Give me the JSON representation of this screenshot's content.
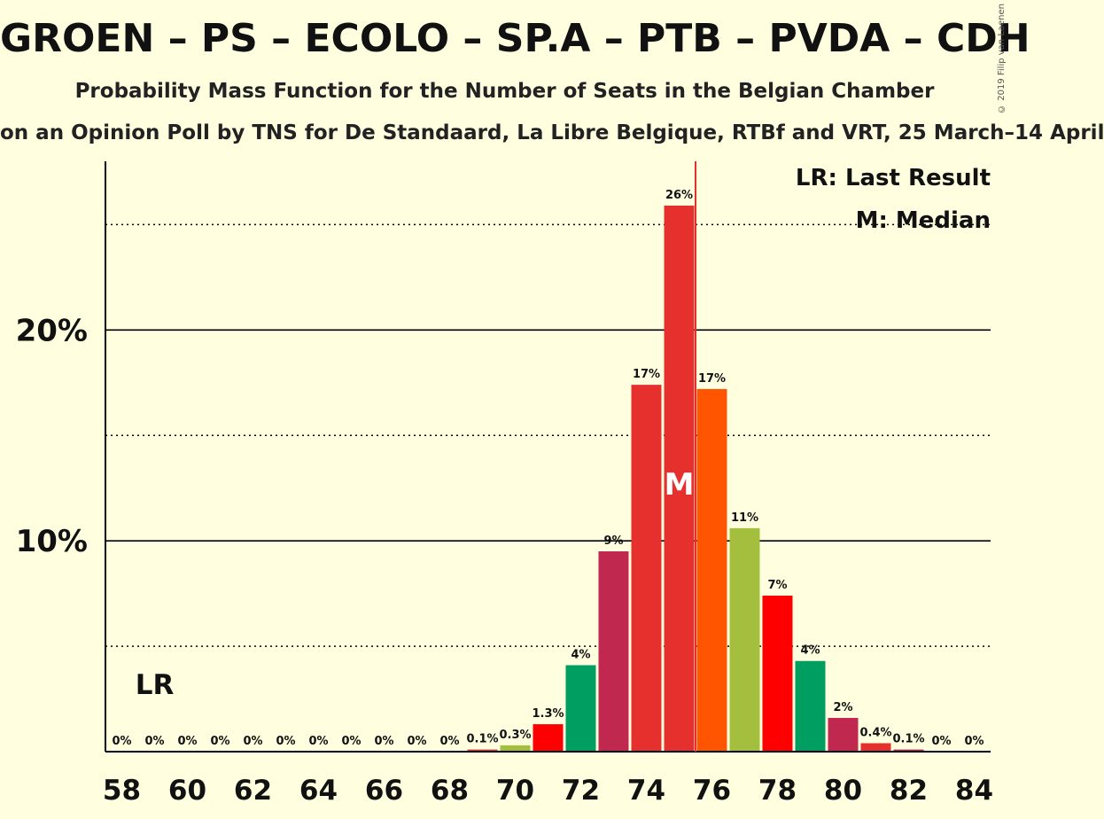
{
  "title": "GROEN – PS – ECOLO – SP.A – PTB – PVDA – CDH",
  "subtitle": "Probability Mass Function for the Number of Seats in the Belgian Chamber",
  "source": "on an Opinion Poll by TNS for De Standaard, La Libre Belgique, RTBf and VRT, 25 March–14 April",
  "copyright": "© 2019 Filip van Laenen",
  "chart_data": {
    "type": "bar",
    "x": [
      58,
      59,
      60,
      61,
      62,
      63,
      64,
      65,
      66,
      67,
      68,
      69,
      70,
      71,
      72,
      73,
      74,
      75,
      76,
      77,
      78,
      79,
      80,
      81,
      82,
      83,
      84
    ],
    "values": [
      0,
      0,
      0,
      0,
      0,
      0,
      0,
      0,
      0,
      0,
      0,
      0.1,
      0.3,
      1.3,
      4.1,
      9.5,
      17.4,
      25.9,
      17.2,
      10.6,
      7.4,
      4.3,
      1.6,
      0.4,
      0.1,
      0,
      0
    ],
    "labels": [
      "0%",
      "0%",
      "0%",
      "0%",
      "0%",
      "0%",
      "0%",
      "0%",
      "0%",
      "0%",
      "0%",
      "0.1%",
      "0.3%",
      "1.3%",
      "4%",
      "9%",
      "17%",
      "26%",
      "17%",
      "11%",
      "7%",
      "4%",
      "2%",
      "0.4%",
      "0.1%",
      "0%",
      "0%"
    ],
    "colors": [
      "#a4bf3e",
      "#ff0000",
      "#009e60",
      "#c0284f",
      "#e5302e",
      "#e5302e",
      "#ff5500",
      "#a4bf3e",
      "#ff0000",
      "#009e60",
      "#c0284f",
      "#e5302e",
      "#a4bf3e",
      "#ff0000",
      "#009e60",
      "#c0284f",
      "#e5302e",
      "#e5302e",
      "#ff5500",
      "#a4bf3e",
      "#ff0000",
      "#009e60",
      "#c0284f",
      "#e5302e",
      "#c0284f",
      "#e5302e",
      "#e5302e"
    ],
    "xtick_labels": [
      "58",
      "60",
      "62",
      "64",
      "66",
      "68",
      "70",
      "72",
      "74",
      "76",
      "78",
      "80",
      "82",
      "84"
    ],
    "xtick_values": [
      58,
      60,
      62,
      64,
      66,
      68,
      70,
      72,
      74,
      76,
      78,
      80,
      82,
      84
    ],
    "ytick_labels": [
      "10%",
      "20%"
    ],
    "ytick_values": [
      10,
      20
    ],
    "dotted_grid": [
      5,
      15,
      25
    ],
    "ylim": [
      0,
      28
    ],
    "last_result": 59,
    "last_result_label": "LR",
    "median": 75,
    "median_label": "M",
    "majority_line": 75.5,
    "legend": [
      "LR: Last Result",
      "M: Median"
    ],
    "legend_position": "top-right"
  }
}
